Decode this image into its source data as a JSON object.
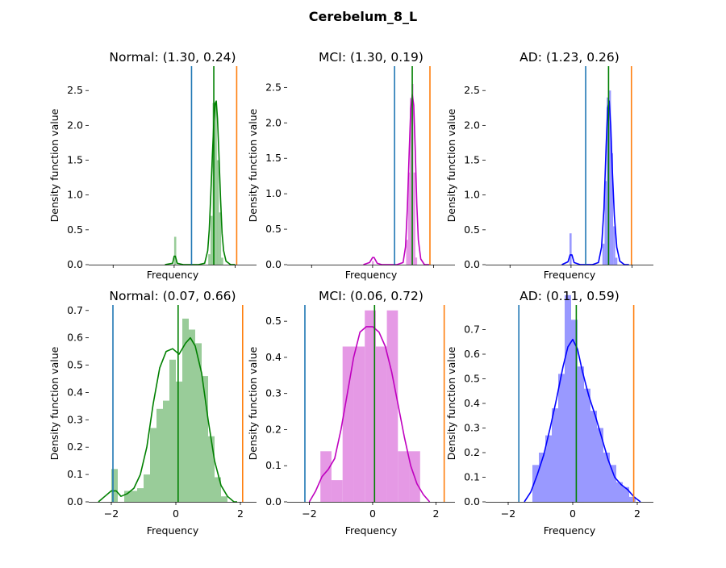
{
  "figure": {
    "suptitle": "Cerebelum_8_L"
  },
  "colors": {
    "normal": "#008000",
    "mci": "#bf00bf",
    "ad": "#0000ff",
    "line_left": "#1f77b4",
    "line_right": "#ff7f0e"
  },
  "chart_data": [
    {
      "type": "histogram+kde",
      "title": "Normal: (1.30, 0.24)",
      "group": "normal",
      "xlabel": "Frequency",
      "ylabel": "Density function value",
      "xlim": [
        -2.8,
        2.7
      ],
      "ylim": [
        0,
        2.85
      ],
      "show_xticklabels": false,
      "yticks": [
        0,
        0.5,
        1.0,
        1.5,
        2.0,
        2.5
      ],
      "yticklabels": [
        "0.0",
        "0.5",
        "1.0",
        "1.5",
        "2.0",
        "2.5"
      ],
      "vlines": {
        "left": 0.57,
        "mean": 1.3,
        "right": 2.05
      },
      "hist": [
        {
          "x0": 0.0,
          "x1": 0.07,
          "h": 0.4
        },
        {
          "x0": 1.12,
          "x1": 1.19,
          "h": 0.15
        },
        {
          "x0": 1.19,
          "x1": 1.26,
          "h": 0.7
        },
        {
          "x0": 1.26,
          "x1": 1.33,
          "h": 2.32
        },
        {
          "x0": 1.33,
          "x1": 1.4,
          "h": 2.3
        },
        {
          "x0": 1.4,
          "x1": 1.47,
          "h": 1.5
        },
        {
          "x0": 1.47,
          "x1": 1.54,
          "h": 0.75
        },
        {
          "x0": 1.54,
          "x1": 1.61,
          "h": 0.1
        }
      ],
      "kde": {
        "x": [
          -0.3,
          -0.05,
          0.0,
          0.04,
          0.1,
          0.3,
          0.8,
          1.0,
          1.1,
          1.15,
          1.2,
          1.25,
          1.3,
          1.35,
          1.38,
          1.42,
          1.47,
          1.52,
          1.57,
          1.62,
          1.7,
          1.85,
          2.0
        ],
        "y": [
          0.0,
          0.02,
          0.12,
          0.12,
          0.02,
          0.0,
          0.0,
          0.02,
          0.2,
          0.5,
          1.0,
          1.55,
          2.05,
          2.32,
          2.35,
          2.1,
          1.55,
          0.95,
          0.45,
          0.2,
          0.05,
          0.0,
          0.0
        ]
      }
    },
    {
      "type": "histogram+kde",
      "title": "MCI: (1.30, 0.19)",
      "group": "mci",
      "xlabel": "Frequency",
      "ylabel": "Density function value",
      "xlim": [
        -2.8,
        2.7
      ],
      "ylim": [
        0,
        2.8
      ],
      "show_xticklabels": false,
      "yticks": [
        0,
        0.5,
        1.0,
        1.5,
        2.0,
        2.5
      ],
      "yticklabels": [
        "0.0",
        "0.5",
        "1.0",
        "1.5",
        "2.0",
        "2.5"
      ],
      "vlines": {
        "left": 0.72,
        "mean": 1.3,
        "right": 1.88
      },
      "hist": [
        {
          "x0": -0.02,
          "x1": 0.04,
          "h": 0.05
        },
        {
          "x0": 1.1,
          "x1": 1.16,
          "h": 0.35
        },
        {
          "x0": 1.16,
          "x1": 1.22,
          "h": 1.3
        },
        {
          "x0": 1.22,
          "x1": 1.28,
          "h": 2.35
        },
        {
          "x0": 1.28,
          "x1": 1.34,
          "h": 2.55
        },
        {
          "x0": 1.34,
          "x1": 1.4,
          "h": 1.3
        },
        {
          "x0": 1.4,
          "x1": 1.46,
          "h": 0.1
        }
      ],
      "kde": {
        "x": [
          -0.3,
          -0.1,
          0.0,
          0.05,
          0.15,
          0.3,
          0.8,
          1.0,
          1.08,
          1.14,
          1.2,
          1.25,
          1.3,
          1.35,
          1.4,
          1.45,
          1.5,
          1.58,
          1.7,
          1.85
        ],
        "y": [
          0.0,
          0.03,
          0.1,
          0.1,
          0.02,
          0.0,
          0.0,
          0.03,
          0.25,
          0.8,
          1.6,
          2.2,
          2.4,
          2.25,
          1.6,
          0.85,
          0.35,
          0.08,
          0.0,
          0.0
        ]
      }
    },
    {
      "type": "histogram+kde",
      "title": "AD: (1.23, 0.26)",
      "group": "ad",
      "xlabel": "Frequency",
      "ylabel": "Density function value",
      "xlim": [
        -2.8,
        2.7
      ],
      "ylim": [
        0,
        2.85
      ],
      "show_xticklabels": false,
      "yticks": [
        0,
        0.5,
        1.0,
        1.5,
        2.0,
        2.5
      ],
      "yticklabels": [
        "0.0",
        "0.5",
        "1.0",
        "1.5",
        "2.0",
        "2.5"
      ],
      "vlines": {
        "left": 0.48,
        "mean": 1.23,
        "right": 1.98
      },
      "hist": [
        {
          "x0": -0.05,
          "x1": 0.02,
          "h": 0.45
        },
        {
          "x0": 1.03,
          "x1": 1.1,
          "h": 0.3
        },
        {
          "x0": 1.1,
          "x1": 1.17,
          "h": 1.2
        },
        {
          "x0": 1.17,
          "x1": 1.24,
          "h": 2.4
        },
        {
          "x0": 1.24,
          "x1": 1.31,
          "h": 2.5
        },
        {
          "x0": 1.31,
          "x1": 1.38,
          "h": 1.6
        },
        {
          "x0": 1.38,
          "x1": 1.45,
          "h": 0.55
        },
        {
          "x0": 1.45,
          "x1": 1.52,
          "h": 0.1
        }
      ],
      "kde": {
        "x": [
          -0.3,
          -0.1,
          -0.03,
          0.03,
          0.1,
          0.3,
          0.7,
          0.9,
          1.0,
          1.08,
          1.15,
          1.2,
          1.25,
          1.3,
          1.35,
          1.42,
          1.5,
          1.6,
          1.75,
          1.9
        ],
        "y": [
          0.0,
          0.04,
          0.14,
          0.14,
          0.03,
          0.0,
          0.0,
          0.03,
          0.25,
          0.8,
          1.7,
          2.25,
          2.35,
          2.0,
          1.4,
          0.7,
          0.25,
          0.05,
          0.0,
          0.0
        ]
      }
    },
    {
      "type": "histogram+kde",
      "title": "Normal: (0.07, 0.66)",
      "group": "normal",
      "xlabel": "Frequency",
      "ylabel": "Density function value",
      "xlim": [
        -2.7,
        2.5
      ],
      "ylim": [
        0,
        0.72
      ],
      "show_xticklabels": true,
      "xticks": [
        -2,
        0,
        2
      ],
      "xticklabels": [
        "−2",
        "0",
        "2"
      ],
      "yticks": [
        0,
        0.1,
        0.2,
        0.3,
        0.4,
        0.5,
        0.6,
        0.7
      ],
      "yticklabels": [
        "0.0",
        "0.1",
        "0.2",
        "0.3",
        "0.4",
        "0.5",
        "0.6",
        "0.7"
      ],
      "vlines": {
        "left": -1.95,
        "mean": 0.07,
        "right": 2.07
      },
      "hist": [
        {
          "x0": -2.0,
          "x1": -1.8,
          "h": 0.12
        },
        {
          "x0": -1.6,
          "x1": -1.4,
          "h": 0.04
        },
        {
          "x0": -1.4,
          "x1": -1.2,
          "h": 0.04
        },
        {
          "x0": -1.2,
          "x1": -1.0,
          "h": 0.05
        },
        {
          "x0": -1.0,
          "x1": -0.8,
          "h": 0.1
        },
        {
          "x0": -0.8,
          "x1": -0.6,
          "h": 0.27
        },
        {
          "x0": -0.6,
          "x1": -0.4,
          "h": 0.34
        },
        {
          "x0": -0.4,
          "x1": -0.2,
          "h": 0.37
        },
        {
          "x0": -0.2,
          "x1": 0.0,
          "h": 0.52
        },
        {
          "x0": 0.0,
          "x1": 0.2,
          "h": 0.44
        },
        {
          "x0": 0.2,
          "x1": 0.4,
          "h": 0.67
        },
        {
          "x0": 0.4,
          "x1": 0.6,
          "h": 0.63
        },
        {
          "x0": 0.6,
          "x1": 0.8,
          "h": 0.58
        },
        {
          "x0": 0.8,
          "x1": 1.0,
          "h": 0.46
        },
        {
          "x0": 1.0,
          "x1": 1.2,
          "h": 0.24
        },
        {
          "x0": 1.2,
          "x1": 1.4,
          "h": 0.09
        },
        {
          "x0": 1.4,
          "x1": 1.6,
          "h": 0.02
        }
      ],
      "kde": {
        "x": [
          -2.4,
          -2.2,
          -2.0,
          -1.85,
          -1.7,
          -1.5,
          -1.3,
          -1.1,
          -0.9,
          -0.7,
          -0.5,
          -0.3,
          -0.1,
          0.1,
          0.3,
          0.45,
          0.6,
          0.8,
          1.0,
          1.2,
          1.4,
          1.6,
          1.8,
          1.9
        ],
        "y": [
          0.0,
          0.02,
          0.04,
          0.04,
          0.02,
          0.03,
          0.05,
          0.1,
          0.2,
          0.36,
          0.49,
          0.55,
          0.56,
          0.54,
          0.58,
          0.6,
          0.57,
          0.47,
          0.3,
          0.15,
          0.06,
          0.02,
          0.0,
          0.0
        ]
      }
    },
    {
      "type": "histogram+kde",
      "title": "MCI: (0.06, 0.72)",
      "group": "mci",
      "xlabel": "Frequency",
      "ylabel": "Density function value",
      "xlim": [
        -2.7,
        2.6
      ],
      "ylim": [
        0,
        0.545
      ],
      "show_xticklabels": true,
      "xticks": [
        -2,
        0,
        2
      ],
      "xticklabels": [
        "−2",
        "0",
        "2"
      ],
      "yticks": [
        0,
        0.1,
        0.2,
        0.3,
        0.4,
        0.5
      ],
      "yticklabels": [
        "0.0",
        "0.1",
        "0.2",
        "0.3",
        "0.4",
        "0.5"
      ],
      "vlines": {
        "left": -2.14,
        "mean": 0.06,
        "right": 2.26
      },
      "hist": [
        {
          "x0": -2.0,
          "x1": -1.65,
          "h": 0.0
        },
        {
          "x0": -1.65,
          "x1": -1.3,
          "h": 0.14
        },
        {
          "x0": -1.3,
          "x1": -0.95,
          "h": 0.06
        },
        {
          "x0": -0.95,
          "x1": -0.6,
          "h": 0.43
        },
        {
          "x0": -0.6,
          "x1": -0.25,
          "h": 0.43
        },
        {
          "x0": -0.25,
          "x1": 0.1,
          "h": 0.53
        },
        {
          "x0": 0.1,
          "x1": 0.45,
          "h": 0.43
        },
        {
          "x0": 0.45,
          "x1": 0.8,
          "h": 0.53
        },
        {
          "x0": 0.8,
          "x1": 1.15,
          "h": 0.14
        },
        {
          "x0": 1.15,
          "x1": 1.5,
          "h": 0.14
        }
      ],
      "kde": {
        "x": [
          -2.0,
          -1.8,
          -1.6,
          -1.4,
          -1.2,
          -1.0,
          -0.8,
          -0.6,
          -0.4,
          -0.2,
          0.0,
          0.2,
          0.4,
          0.6,
          0.8,
          1.0,
          1.2,
          1.4,
          1.6,
          1.8
        ],
        "y": [
          0.0,
          0.03,
          0.07,
          0.09,
          0.12,
          0.2,
          0.3,
          0.4,
          0.47,
          0.485,
          0.485,
          0.47,
          0.43,
          0.36,
          0.27,
          0.18,
          0.1,
          0.05,
          0.02,
          0.0
        ]
      }
    },
    {
      "type": "histogram+kde",
      "title": "AD: (0.11, 0.59)",
      "group": "ad",
      "xlabel": "Frequency",
      "ylabel": "Density function value",
      "xlim": [
        -2.7,
        2.5
      ],
      "ylim": [
        0,
        0.8
      ],
      "show_xticklabels": true,
      "xticks": [
        -2,
        0,
        2
      ],
      "xticklabels": [
        "−2",
        "0",
        "2"
      ],
      "yticks": [
        0,
        0.1,
        0.2,
        0.3,
        0.4,
        0.5,
        0.6,
        0.7
      ],
      "yticklabels": [
        "0.0",
        "0.1",
        "0.2",
        "0.3",
        "0.4",
        "0.5",
        "0.6",
        "0.7"
      ],
      "vlines": {
        "left": -1.67,
        "mean": 0.11,
        "right": 1.89
      },
      "hist": [
        {
          "x0": -1.25,
          "x1": -1.05,
          "h": 0.15
        },
        {
          "x0": -1.05,
          "x1": -0.85,
          "h": 0.2
        },
        {
          "x0": -0.85,
          "x1": -0.65,
          "h": 0.27
        },
        {
          "x0": -0.65,
          "x1": -0.45,
          "h": 0.38
        },
        {
          "x0": -0.45,
          "x1": -0.25,
          "h": 0.52
        },
        {
          "x0": -0.25,
          "x1": -0.05,
          "h": 0.84
        },
        {
          "x0": -0.05,
          "x1": 0.15,
          "h": 0.74
        },
        {
          "x0": 0.15,
          "x1": 0.35,
          "h": 0.55
        },
        {
          "x0": 0.35,
          "x1": 0.55,
          "h": 0.46
        },
        {
          "x0": 0.55,
          "x1": 0.75,
          "h": 0.37
        },
        {
          "x0": 0.75,
          "x1": 0.95,
          "h": 0.3
        },
        {
          "x0": 0.95,
          "x1": 1.15,
          "h": 0.2
        },
        {
          "x0": 1.15,
          "x1": 1.35,
          "h": 0.15
        },
        {
          "x0": 1.35,
          "x1": 1.55,
          "h": 0.08
        },
        {
          "x0": 1.55,
          "x1": 1.75,
          "h": 0.06
        },
        {
          "x0": 1.75,
          "x1": 1.95,
          "h": 0.02
        }
      ],
      "kde": {
        "x": [
          -1.5,
          -1.3,
          -1.1,
          -0.9,
          -0.7,
          -0.5,
          -0.3,
          -0.15,
          0.0,
          0.15,
          0.3,
          0.5,
          0.7,
          0.9,
          1.1,
          1.3,
          1.5,
          1.7,
          1.9,
          2.1
        ],
        "y": [
          0.0,
          0.04,
          0.11,
          0.19,
          0.3,
          0.42,
          0.55,
          0.63,
          0.66,
          0.62,
          0.53,
          0.43,
          0.35,
          0.26,
          0.17,
          0.1,
          0.07,
          0.05,
          0.02,
          0.0
        ]
      }
    }
  ]
}
